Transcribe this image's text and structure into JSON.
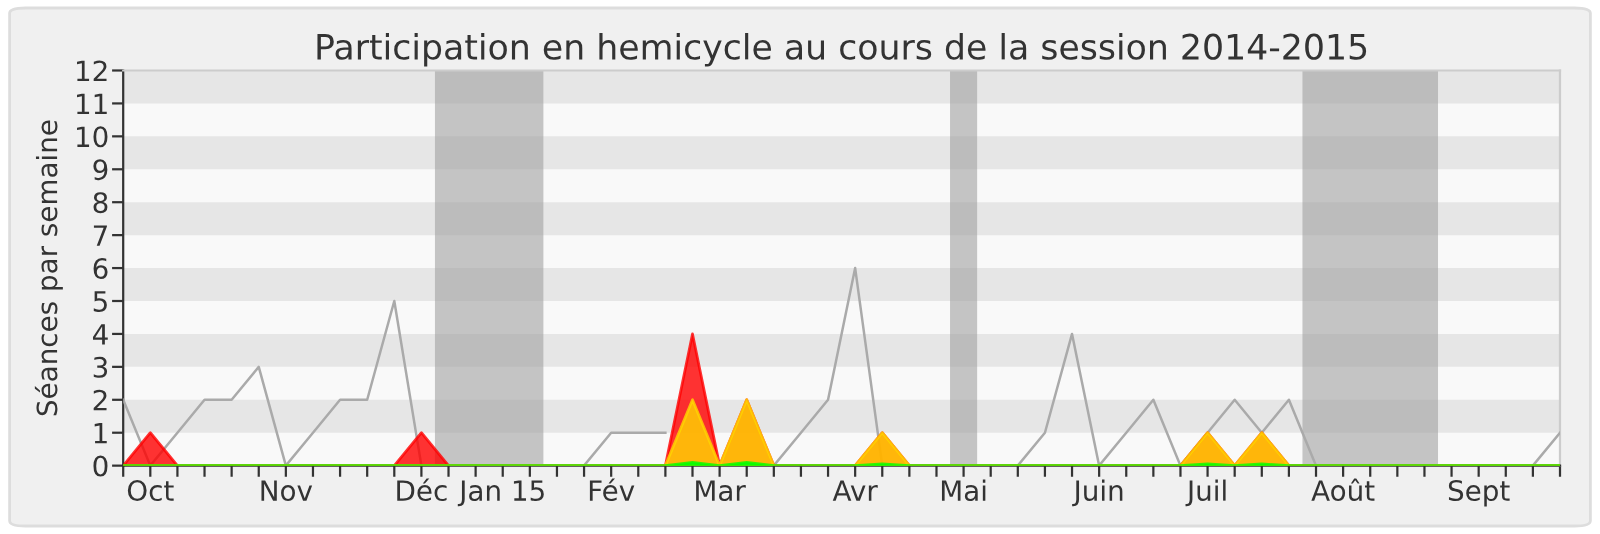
{
  "chart_data": {
    "type": "area",
    "title": "Participation en hemicycle au cours de la session 2014-2015",
    "ylabel": "Séances par semaine",
    "x": [
      "2014-09-28",
      "2014-10-05",
      "2014-10-12",
      "2014-10-19",
      "2014-10-26",
      "2014-11-02",
      "2014-11-09",
      "2014-11-16",
      "2014-11-23",
      "2014-11-30",
      "2014-12-07",
      "2014-12-14",
      "2014-12-21",
      "2014-12-28",
      "2015-01-04",
      "2015-01-11",
      "2015-01-18",
      "2015-01-25",
      "2015-02-01",
      "2015-02-08",
      "2015-02-15",
      "2015-02-22",
      "2015-03-01",
      "2015-03-08",
      "2015-03-15",
      "2015-03-22",
      "2015-03-29",
      "2015-04-05",
      "2015-04-12",
      "2015-04-19",
      "2015-04-26",
      "2015-05-03",
      "2015-05-10",
      "2015-05-17",
      "2015-05-24",
      "2015-05-31",
      "2015-06-07",
      "2015-06-14",
      "2015-06-21",
      "2015-06-28",
      "2015-07-05",
      "2015-07-12",
      "2015-07-19",
      "2015-07-26",
      "2015-08-02",
      "2015-08-09",
      "2015-08-16",
      "2015-08-23",
      "2015-08-30",
      "2015-09-06",
      "2015-09-13",
      "2015-09-20",
      "2015-09-27",
      "2015-10-04"
    ],
    "series": [
      {
        "type": "line",
        "color": "#aaaaaa",
        "values": [
          2,
          0,
          1,
          2,
          2,
          3,
          0,
          1,
          2,
          2,
          5,
          0,
          0,
          0,
          0,
          0,
          0,
          0,
          1,
          1,
          1,
          null,
          0,
          0,
          0,
          1,
          2,
          6,
          0,
          0,
          0,
          0,
          0,
          0,
          1,
          4,
          0,
          1,
          2,
          0,
          1,
          2,
          1,
          2,
          0,
          0,
          0,
          0,
          0,
          0,
          0,
          0,
          0,
          1
        ]
      },
      {
        "color": "#ff0000",
        "values": [
          0,
          1,
          0,
          0,
          0,
          0,
          0,
          0,
          0,
          0,
          0,
          1,
          0,
          0,
          0,
          0,
          0,
          0,
          0,
          0,
          0,
          4,
          0,
          2,
          0,
          0,
          0,
          0,
          1,
          0,
          0,
          0,
          0,
          0,
          0,
          0,
          0,
          0,
          0,
          0,
          1,
          0,
          1,
          0,
          0,
          0,
          0,
          0,
          0,
          0,
          0,
          0,
          0,
          0
        ]
      },
      {
        "color": "#ffd700",
        "values": [
          0,
          0,
          0,
          0,
          0,
          0,
          0,
          0,
          0,
          0,
          0,
          0,
          0,
          0,
          0,
          0,
          0,
          0,
          0,
          0,
          0,
          2,
          0,
          2,
          0,
          0,
          0,
          0,
          1,
          0,
          0,
          0,
          0,
          0,
          0,
          0,
          0,
          0,
          0,
          0,
          1,
          0,
          1,
          0,
          0,
          0,
          0,
          0,
          0,
          0,
          0,
          0,
          0,
          0
        ]
      },
      {
        "color": "#00ff00",
        "values": [
          0,
          0,
          0,
          0,
          0,
          0,
          0,
          0,
          0,
          0,
          0,
          0,
          0,
          0,
          0,
          0,
          0,
          0,
          0,
          0,
          0,
          0.1,
          0,
          0.1,
          0,
          0,
          0,
          0,
          0.05,
          0,
          0,
          0,
          0,
          0,
          0,
          0,
          0,
          0,
          0,
          0,
          0.05,
          0,
          0.05,
          0,
          0,
          0,
          0,
          0,
          0,
          0,
          0,
          0,
          0,
          0
        ]
      }
    ],
    "xlim": [
      "2014-09-28",
      "2015-10-04"
    ],
    "xticks": [
      {
        "value": "2014-09-28",
        "label": null
      },
      {
        "value": "2014-10-05",
        "label": "Oct"
      },
      {
        "value": "2014-10-12",
        "label": null
      },
      {
        "value": "2014-10-19",
        "label": null
      },
      {
        "value": "2014-10-26",
        "label": null
      },
      {
        "value": "2014-11-02",
        "label": null
      },
      {
        "value": "2014-11-09",
        "label": "Nov"
      },
      {
        "value": "2014-11-16",
        "label": null
      },
      {
        "value": "2014-11-23",
        "label": null
      },
      {
        "value": "2014-11-30",
        "label": null
      },
      {
        "value": "2014-12-07",
        "label": null
      },
      {
        "value": "2014-12-14",
        "label": "Déc"
      },
      {
        "value": "2014-12-21",
        "label": null
      },
      {
        "value": "2014-12-28",
        "label": null
      },
      {
        "value": "2015-01-04",
        "label": "Jan 15"
      },
      {
        "value": "2015-01-11",
        "label": null
      },
      {
        "value": "2015-01-18",
        "label": null
      },
      {
        "value": "2015-01-25",
        "label": null
      },
      {
        "value": "2015-02-01",
        "label": "Fév"
      },
      {
        "value": "2015-02-08",
        "label": null
      },
      {
        "value": "2015-02-15",
        "label": null
      },
      {
        "value": "2015-02-22",
        "label": null
      },
      {
        "value": "2015-03-01",
        "label": "Mar"
      },
      {
        "value": "2015-03-08",
        "label": null
      },
      {
        "value": "2015-03-15",
        "label": null
      },
      {
        "value": "2015-03-22",
        "label": null
      },
      {
        "value": "2015-03-29",
        "label": null
      },
      {
        "value": "2015-04-05",
        "label": "Avr"
      },
      {
        "value": "2015-04-12",
        "label": null
      },
      {
        "value": "2015-04-19",
        "label": null
      },
      {
        "value": "2015-04-26",
        "label": null
      },
      {
        "value": "2015-05-03",
        "label": "Mai"
      },
      {
        "value": "2015-05-10",
        "label": null
      },
      {
        "value": "2015-05-17",
        "label": null
      },
      {
        "value": "2015-05-24",
        "label": null
      },
      {
        "value": "2015-05-31",
        "label": null
      },
      {
        "value": "2015-06-07",
        "label": "Juin"
      },
      {
        "value": "2015-06-14",
        "label": null
      },
      {
        "value": "2015-06-21",
        "label": null
      },
      {
        "value": "2015-06-28",
        "label": null
      },
      {
        "value": "2015-07-05",
        "label": "Juil"
      },
      {
        "value": "2015-07-12",
        "label": null
      },
      {
        "value": "2015-07-19",
        "label": null
      },
      {
        "value": "2015-07-26",
        "label": null
      },
      {
        "value": "2015-08-02",
        "label": null
      },
      {
        "value": "2015-08-09",
        "label": "Août"
      },
      {
        "value": "2015-08-16",
        "label": null
      },
      {
        "value": "2015-08-23",
        "label": null
      },
      {
        "value": "2015-08-30",
        "label": null
      },
      {
        "value": "2015-09-06",
        "label": null
      },
      {
        "value": "2015-09-13",
        "label": "Sept"
      },
      {
        "value": "2015-09-20",
        "label": null
      },
      {
        "value": "2015-09-27",
        "label": null
      },
      {
        "value": "2015-10-04",
        "label": null
      }
    ],
    "ylim": [
      0,
      12
    ],
    "yticks": [
      0,
      1,
      2,
      3,
      4,
      5,
      6,
      7,
      8,
      9,
      10,
      11,
      12
    ],
    "bands": [
      {
        "axis": "y",
        "from": 1,
        "to": 2,
        "color": "#e6e6e6"
      },
      {
        "axis": "y",
        "from": 3,
        "to": 4,
        "color": "#e6e6e6"
      },
      {
        "axis": "y",
        "from": 5,
        "to": 6,
        "color": "#e6e6e6"
      },
      {
        "axis": "y",
        "from": 7,
        "to": 8,
        "color": "#e6e6e6"
      },
      {
        "axis": "y",
        "from": 9,
        "to": 10,
        "color": "#e6e6e6"
      },
      {
        "axis": "y",
        "from": 11,
        "to": 12,
        "color": "#e6e6e6"
      },
      {
        "axis": "x",
        "from": "2014-12-17T12:00",
        "to": "2015-01-14T12:00",
        "color": "#a0a0a0"
      },
      {
        "axis": "x",
        "from": "2015-04-29T12:00",
        "to": "2015-05-06T12:00",
        "color": "#a0a0a0"
      },
      {
        "axis": "x",
        "from": "2015-07-29T12:00",
        "to": "2015-09-02T12:00",
        "color": "#a0a0a0"
      }
    ],
    "grid": false,
    "legend": false
  }
}
